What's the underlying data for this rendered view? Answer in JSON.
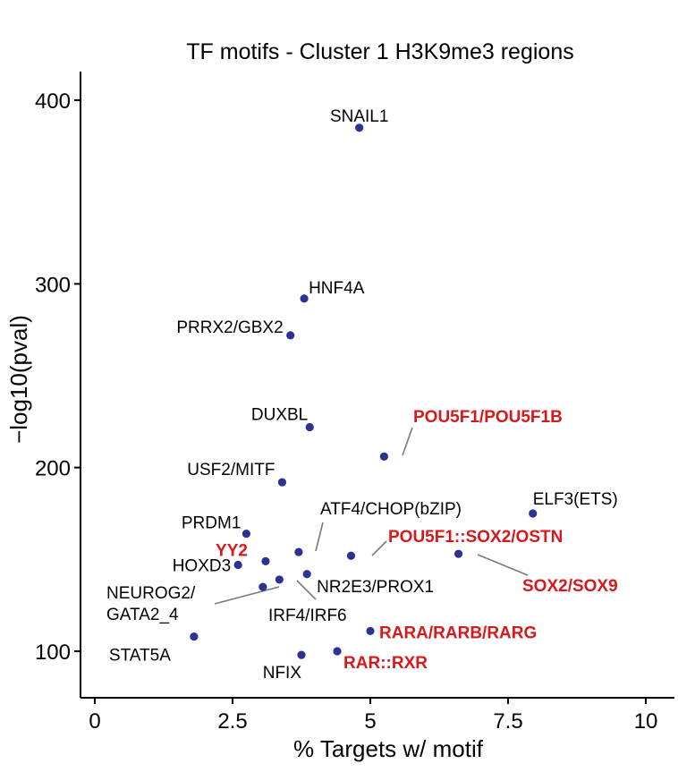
{
  "chart_data": {
    "type": "scatter",
    "title": "TF motifs - Cluster 1 H3K9me3 regions",
    "xlabel": "% Targets w/ motif",
    "ylabel": "−log10(pval)",
    "xlim": [
      -0.5,
      10
    ],
    "ylim": [
      85,
      415
    ],
    "xticks": [
      0,
      2.5,
      5,
      7.5,
      10
    ],
    "xtick_labels": [
      "0",
      "2.5",
      "5",
      "7.5",
      "10"
    ],
    "yticks": [
      100,
      200,
      300,
      400
    ],
    "ytick_labels": [
      "100",
      "200",
      "300",
      "400"
    ],
    "grid": false,
    "legend": "none",
    "point_color": "#2e3192",
    "highlight_color": "#d7191c",
    "label_color": "#000000",
    "points": [
      {
        "label": "SNAIL1",
        "x": 4.8,
        "y": 385,
        "highlight": false
      },
      {
        "label": "HNF4A",
        "x": 3.8,
        "y": 292,
        "highlight": false
      },
      {
        "label": "PRRX2/GBX2",
        "x": 3.55,
        "y": 272,
        "highlight": false
      },
      {
        "label": "DUXBL",
        "x": 3.9,
        "y": 222,
        "highlight": false
      },
      {
        "label": "POU5F1/POU5F1B",
        "x": 5.25,
        "y": 206,
        "highlight": true
      },
      {
        "label": "USF2/MITF",
        "x": 3.4,
        "y": 192,
        "highlight": false
      },
      {
        "label": "ELF3(ETS)",
        "x": 7.95,
        "y": 175,
        "highlight": false
      },
      {
        "label": "PRDM1",
        "x": 2.75,
        "y": 164,
        "highlight": false
      },
      {
        "label": "ATF4/CHOP(bZIP)",
        "x": 3.7,
        "y": 154,
        "highlight": false
      },
      {
        "label": "POU5F1::SOX2/OSTN",
        "x": 4.65,
        "y": 152,
        "highlight": true
      },
      {
        "label": "SOX2/SOX9",
        "x": 6.6,
        "y": 153,
        "highlight": true
      },
      {
        "label": "YY2",
        "x": 3.1,
        "y": 149,
        "highlight": true
      },
      {
        "label": "HOXD3",
        "x": 2.6,
        "y": 147,
        "highlight": false
      },
      {
        "label": "NR2E3/PROX1",
        "x": 3.85,
        "y": 142,
        "highlight": false
      },
      {
        "label": "IRF4/IRF6",
        "x": 3.35,
        "y": 139,
        "highlight": false
      },
      {
        "label": "NEUROG2/ GATA2_4",
        "x": 3.05,
        "y": 135,
        "highlight": false
      },
      {
        "label": "RARA/RARB/RARG",
        "x": 5.0,
        "y": 111,
        "highlight": true
      },
      {
        "label": "STAT5A",
        "x": 1.8,
        "y": 108,
        "highlight": false
      },
      {
        "label": "RAR::RXR",
        "x": 4.4,
        "y": 100,
        "highlight": true
      },
      {
        "label": "NFIX",
        "x": 3.75,
        "y": 98,
        "highlight": false
      }
    ]
  }
}
